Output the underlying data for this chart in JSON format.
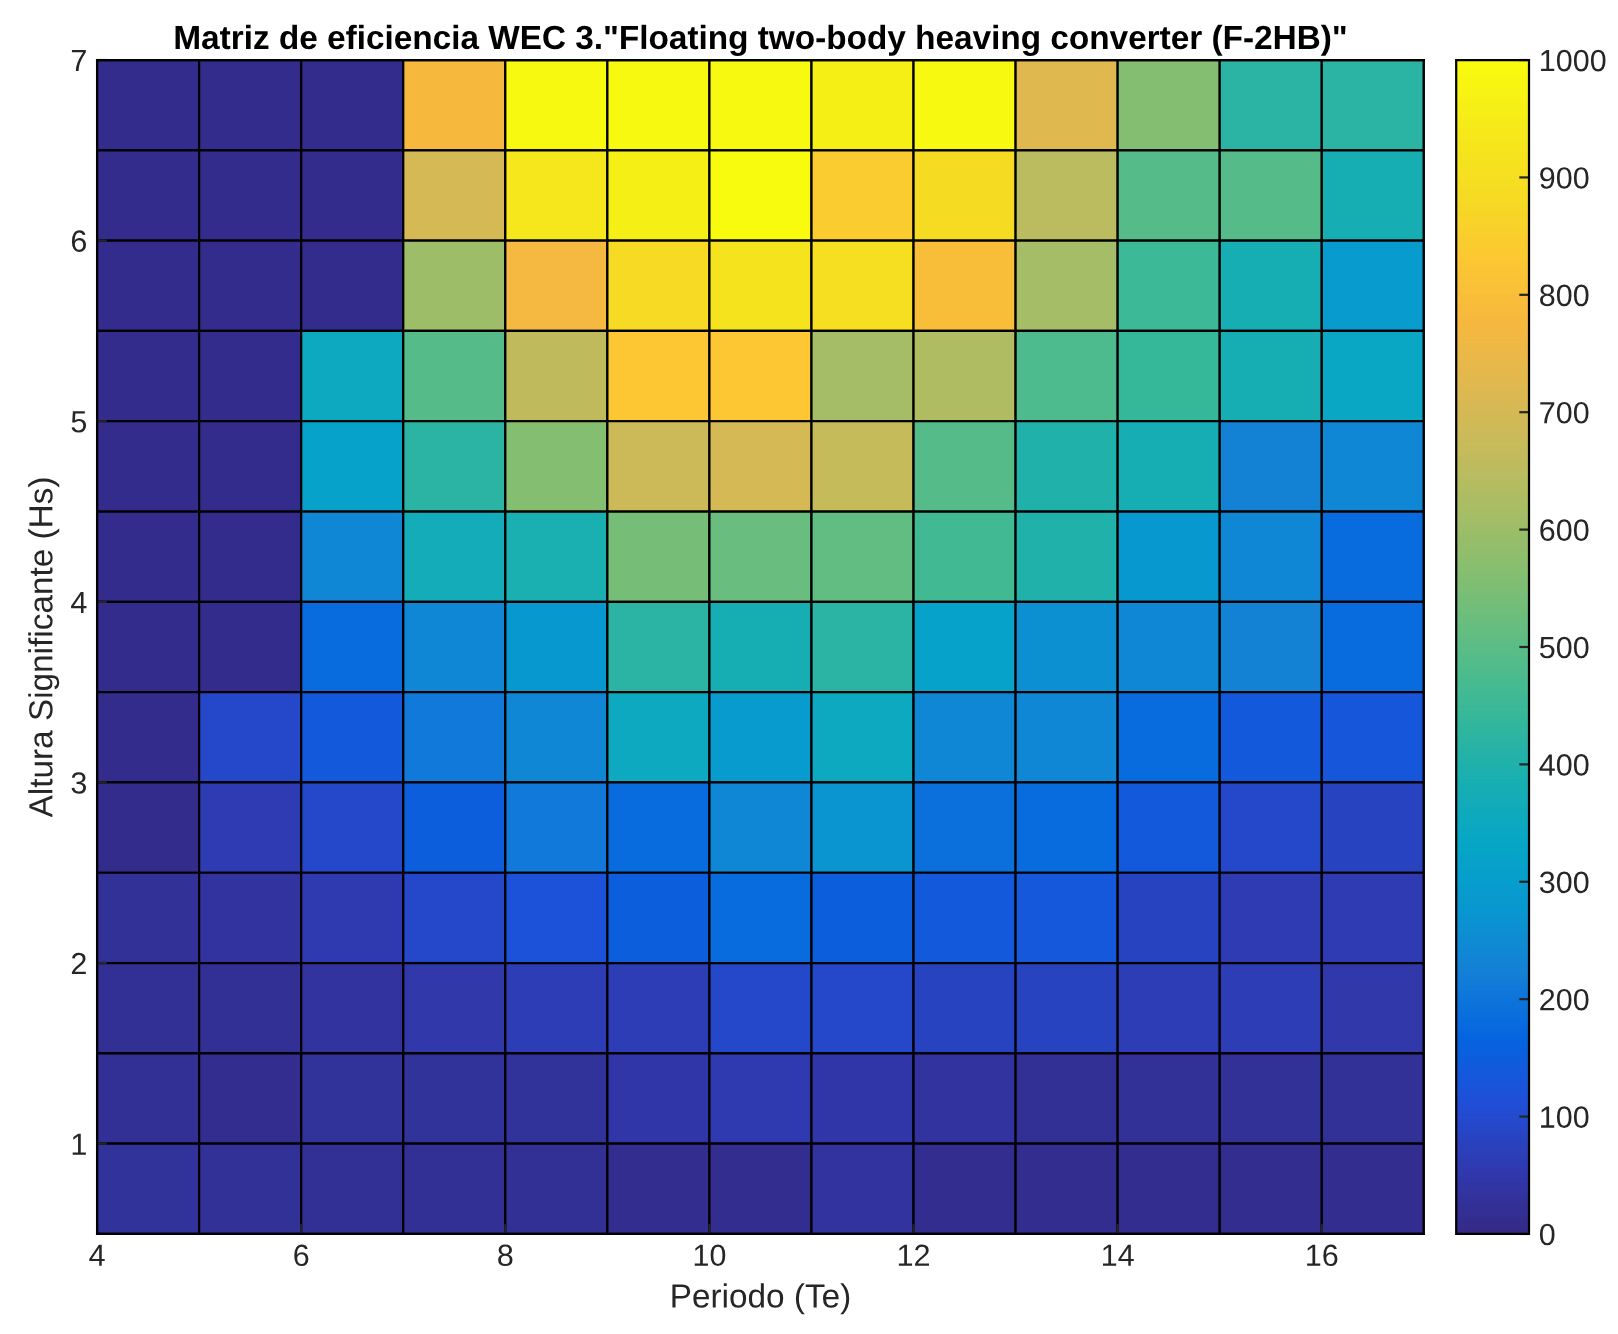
{
  "chart_data": {
    "type": "heatmap",
    "title": "Matriz de eficiencia WEC 3.\"Floating two-body heaving converter (F-2HB)\"",
    "xlabel": "Periodo (Te)",
    "ylabel": "Altura Significante (Hs)",
    "x": [
      4.5,
      5.5,
      6.5,
      7.5,
      8.5,
      9.5,
      10.5,
      11.5,
      12.5,
      13.5,
      14.5,
      15.5,
      16.5
    ],
    "y": [
      6.75,
      6.25,
      5.75,
      5.25,
      4.75,
      4.25,
      3.75,
      3.25,
      2.75,
      2.25,
      1.75,
      1.25,
      0.75
    ],
    "xlim": [
      4,
      17
    ],
    "xticks": [
      4,
      6,
      8,
      10,
      12,
      14,
      16
    ],
    "ylim": [
      0.5,
      7
    ],
    "yticks": [
      1,
      2,
      3,
      4,
      5,
      6,
      7
    ],
    "clim": [
      0,
      1000
    ],
    "cticks": [
      0,
      100,
      200,
      300,
      400,
      500,
      600,
      700,
      800,
      900,
      1000
    ],
    "cells": [
      [
        10,
        10,
        10,
        780,
        990,
        990,
        990,
        960,
        990,
        720,
        560,
        420,
        420
      ],
      [
        10,
        10,
        10,
        700,
        930,
        960,
        1000,
        840,
        890,
        650,
        490,
        490,
        380
      ],
      [
        10,
        10,
        10,
        600,
        770,
        880,
        920,
        900,
        800,
        610,
        450,
        380,
        290
      ],
      [
        10,
        10,
        350,
        490,
        660,
        830,
        830,
        610,
        630,
        480,
        440,
        380,
        340
      ],
      [
        10,
        10,
        320,
        420,
        560,
        680,
        700,
        670,
        490,
        400,
        380,
        230,
        240
      ],
      [
        10,
        10,
        240,
        370,
        390,
        540,
        520,
        510,
        460,
        400,
        280,
        240,
        180
      ],
      [
        10,
        10,
        180,
        240,
        280,
        420,
        380,
        420,
        320,
        260,
        240,
        230,
        180
      ],
      [
        10,
        90,
        140,
        210,
        240,
        350,
        290,
        350,
        240,
        240,
        180,
        140,
        130
      ],
      [
        10,
        60,
        90,
        150,
        210,
        180,
        240,
        270,
        190,
        180,
        140,
        90,
        80
      ],
      [
        25,
        35,
        55,
        90,
        120,
        150,
        180,
        150,
        140,
        135,
        80,
        60,
        60
      ],
      [
        20,
        20,
        35,
        50,
        65,
        65,
        90,
        90,
        80,
        80,
        65,
        65,
        50
      ],
      [
        20,
        15,
        30,
        30,
        30,
        45,
        55,
        45,
        35,
        20,
        25,
        25,
        25
      ],
      [
        30,
        25,
        20,
        20,
        20,
        15,
        15,
        35,
        15,
        15,
        15,
        15,
        15
      ]
    ]
  }
}
